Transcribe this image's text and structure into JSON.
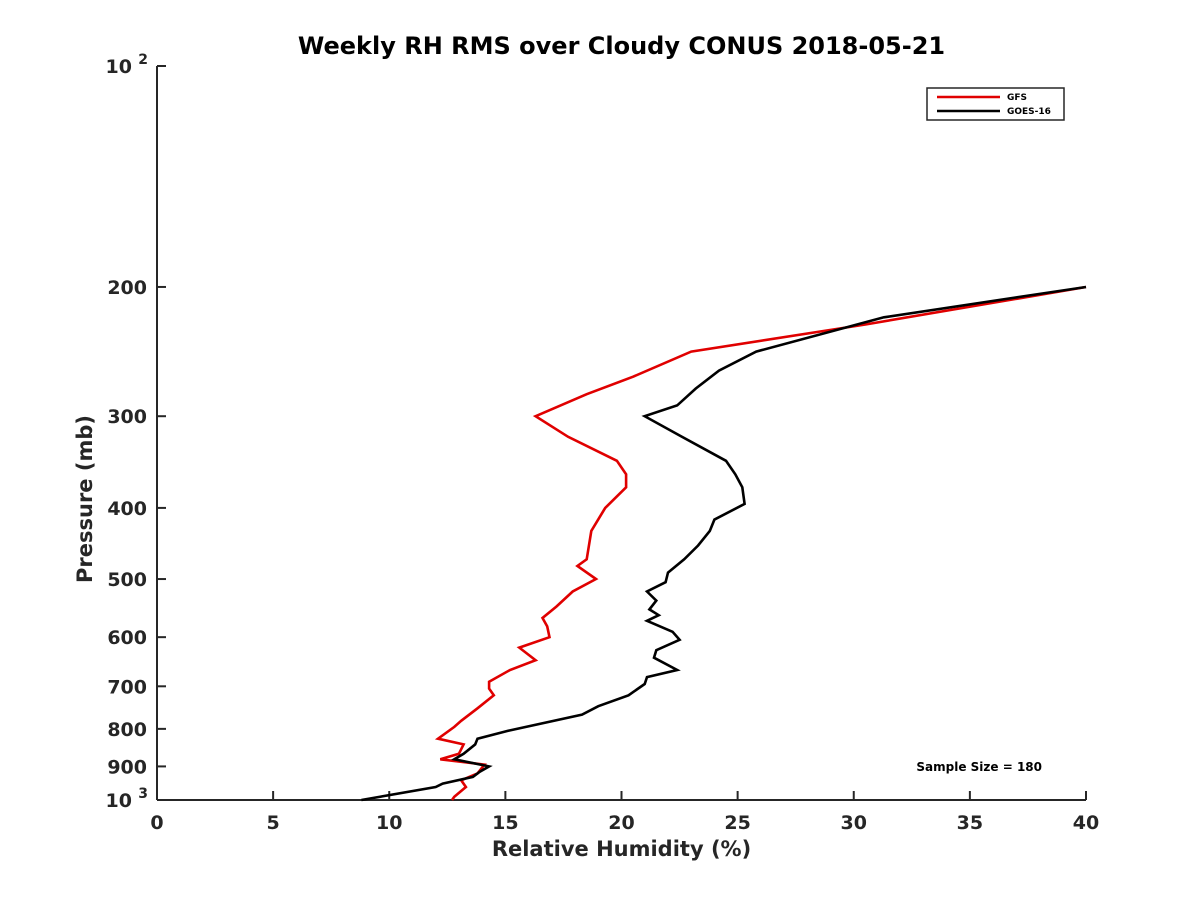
{
  "chart_data": {
    "type": "line",
    "title": "Weekly RH RMS over Cloudy CONUS 2018-05-21",
    "xlabel": "Relative Humidity (%)",
    "ylabel": "Pressure (mb)",
    "xlim": [
      0,
      40
    ],
    "ylim": [
      100,
      1000
    ],
    "y_scale": "log",
    "y_reversed": true,
    "x_ticks": [
      0,
      5,
      10,
      15,
      20,
      25,
      30,
      35,
      40
    ],
    "y_ticks": [
      {
        "value": 100,
        "label": "10",
        "sup": "2"
      },
      {
        "value": 200,
        "label": "200",
        "sup": ""
      },
      {
        "value": 300,
        "label": "300",
        "sup": ""
      },
      {
        "value": 400,
        "label": "400",
        "sup": ""
      },
      {
        "value": 500,
        "label": "500",
        "sup": ""
      },
      {
        "value": 600,
        "label": "600",
        "sup": ""
      },
      {
        "value": 700,
        "label": "700",
        "sup": ""
      },
      {
        "value": 800,
        "label": "800",
        "sup": ""
      },
      {
        "value": 900,
        "label": "900",
        "sup": ""
      },
      {
        "value": 1000,
        "label": "10",
        "sup": "3"
      }
    ],
    "grid": false,
    "legend_position": "top-right",
    "annotation": "Sample Size = 180",
    "series": [
      {
        "name": "GFS",
        "color": "#e00000",
        "points": [
          [
            40.0,
            200
          ],
          [
            30.5,
            225
          ],
          [
            23.0,
            245
          ],
          [
            20.5,
            265
          ],
          [
            18.5,
            280
          ],
          [
            16.3,
            300
          ],
          [
            17.7,
            320
          ],
          [
            19.8,
            345
          ],
          [
            20.2,
            360
          ],
          [
            20.2,
            375
          ],
          [
            19.3,
            400
          ],
          [
            18.7,
            430
          ],
          [
            18.5,
            470
          ],
          [
            18.1,
            480
          ],
          [
            18.9,
            500
          ],
          [
            17.9,
            520
          ],
          [
            17.2,
            545
          ],
          [
            16.6,
            565
          ],
          [
            16.8,
            580
          ],
          [
            16.9,
            600
          ],
          [
            15.6,
            620
          ],
          [
            16.3,
            645
          ],
          [
            15.2,
            665
          ],
          [
            14.3,
            690
          ],
          [
            14.3,
            705
          ],
          [
            14.5,
            720
          ],
          [
            13.8,
            750
          ],
          [
            13.1,
            780
          ],
          [
            12.8,
            795
          ],
          [
            12.1,
            825
          ],
          [
            13.2,
            840
          ],
          [
            13.0,
            865
          ],
          [
            12.2,
            880
          ],
          [
            14.1,
            895
          ],
          [
            13.8,
            920
          ],
          [
            13.1,
            940
          ],
          [
            13.3,
            960
          ],
          [
            12.8,
            990
          ],
          [
            12.7,
            1000
          ]
        ]
      },
      {
        "name": "GOES-16",
        "color": "#000000",
        "points": [
          [
            40.0,
            200
          ],
          [
            31.3,
            220
          ],
          [
            25.8,
            245
          ],
          [
            24.2,
            260
          ],
          [
            23.2,
            275
          ],
          [
            22.4,
            290
          ],
          [
            21.0,
            300
          ],
          [
            22.6,
            320
          ],
          [
            24.5,
            345
          ],
          [
            24.9,
            360
          ],
          [
            25.2,
            375
          ],
          [
            25.3,
            395
          ],
          [
            24.0,
            415
          ],
          [
            23.8,
            430
          ],
          [
            23.3,
            450
          ],
          [
            22.7,
            470
          ],
          [
            22.0,
            490
          ],
          [
            21.9,
            505
          ],
          [
            21.1,
            520
          ],
          [
            21.5,
            535
          ],
          [
            21.2,
            550
          ],
          [
            21.6,
            560
          ],
          [
            21.1,
            570
          ],
          [
            22.2,
            590
          ],
          [
            22.5,
            605
          ],
          [
            21.5,
            625
          ],
          [
            21.4,
            640
          ],
          [
            22.4,
            665
          ],
          [
            21.1,
            680
          ],
          [
            21.0,
            695
          ],
          [
            20.3,
            720
          ],
          [
            19.0,
            745
          ],
          [
            18.3,
            765
          ],
          [
            15.1,
            805
          ],
          [
            13.8,
            825
          ],
          [
            13.7,
            840
          ],
          [
            13.2,
            865
          ],
          [
            12.8,
            880
          ],
          [
            14.3,
            900
          ],
          [
            13.9,
            915
          ],
          [
            13.6,
            930
          ],
          [
            12.3,
            950
          ],
          [
            12.0,
            960
          ],
          [
            8.8,
            1000
          ]
        ]
      }
    ]
  }
}
